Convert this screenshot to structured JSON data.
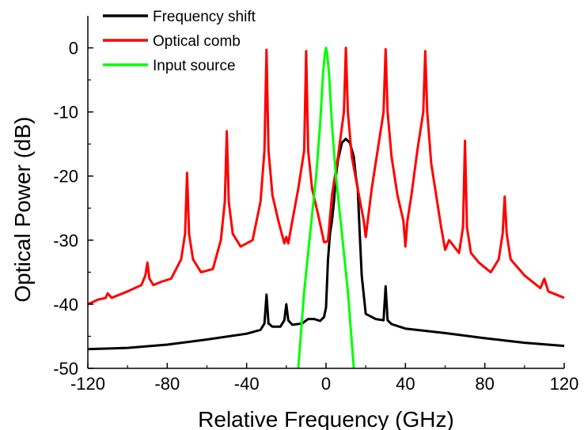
{
  "chart_data": {
    "type": "line",
    "xlabel": "Relative Frequency (GHz)",
    "ylabel": "Optical Power (dB)",
    "xlim": [
      -120,
      120
    ],
    "ylim": [
      -50,
      5
    ],
    "xticks": [
      -120,
      -80,
      -40,
      0,
      40,
      80,
      120
    ],
    "yticks": [
      0,
      -10,
      -20,
      -30,
      -40,
      -50
    ],
    "xtick_labels": [
      "-120",
      "-80",
      "-40",
      "0",
      "40",
      "80",
      "120"
    ],
    "ytick_labels": [
      "0",
      "-10",
      "-20",
      "-30",
      "-40",
      "-50"
    ],
    "grid": false,
    "legend_position": "top-left",
    "series": [
      {
        "name": "Frequency shift",
        "color": "#000000",
        "x": [
          -120,
          -100,
          -80,
          -60,
          -40,
          -33,
          -31,
          -30,
          -29,
          -27,
          -23,
          -21,
          -20,
          -19,
          -17,
          -12,
          -9,
          -6,
          -3,
          -1,
          0,
          1,
          2,
          3,
          4,
          5,
          6,
          8,
          10,
          12,
          14,
          15,
          16,
          17,
          18,
          20,
          25,
          29,
          30,
          31,
          33,
          40,
          60,
          80,
          100,
          120
        ],
        "y": [
          -47,
          -46.8,
          -46.3,
          -45.5,
          -44.6,
          -44,
          -43,
          -38.5,
          -43,
          -43.5,
          -43.5,
          -42.5,
          -40,
          -42.5,
          -43.2,
          -43,
          -42.3,
          -42.3,
          -42.6,
          -42,
          -40.5,
          -33,
          -29,
          -27,
          -24,
          -20,
          -17.5,
          -14.8,
          -14.2,
          -14.8,
          -17,
          -20,
          -22,
          -29,
          -35.5,
          -41.5,
          -42.3,
          -42.5,
          -37.2,
          -42.5,
          -43.1,
          -43.8,
          -44.5,
          -45.3,
          -46,
          -46.5
        ]
      },
      {
        "name": "Optical comb",
        "color": "#ff0000",
        "x": [
          -120,
          -115,
          -111,
          -110,
          -108,
          -100,
          -93,
          -91,
          -90,
          -89,
          -87,
          -83,
          -78,
          -73,
          -71,
          -70,
          -69,
          -67,
          -63,
          -57,
          -53,
          -51,
          -50,
          -49,
          -47,
          -43,
          -37,
          -33,
          -31,
          -30,
          -29,
          -27,
          -24,
          -21,
          -20,
          -19,
          -17,
          -14,
          -11,
          -10,
          -9,
          -7,
          -4,
          -1,
          0,
          1,
          3,
          6,
          9,
          10,
          11,
          13,
          16,
          19,
          20,
          21,
          23,
          26,
          29,
          30,
          31,
          33,
          36,
          39,
          40,
          41,
          43,
          46,
          49,
          50,
          51,
          53,
          58,
          60,
          62,
          67,
          69,
          70,
          71,
          73,
          77,
          83,
          87,
          89,
          90,
          91,
          93,
          100,
          108,
          110,
          112,
          120
        ],
        "y": [
          -40,
          -39.3,
          -39,
          -38.3,
          -39,
          -38,
          -37,
          -35.5,
          -33.5,
          -36,
          -37,
          -36.5,
          -36,
          -33,
          -29,
          -19.5,
          -29,
          -33,
          -35,
          -34.5,
          -30,
          -24,
          -13,
          -24,
          -29,
          -31,
          -30,
          -24,
          -16,
          -0.3,
          -16,
          -23,
          -27,
          -30.5,
          -29.5,
          -30.5,
          -27,
          -22,
          -16,
          -0.5,
          -16,
          -22,
          -26,
          -30.3,
          -30.3,
          -30,
          -23,
          -17,
          -10,
          0,
          -10,
          -17,
          -22,
          -27,
          -29.5,
          -27,
          -22,
          -16,
          -10,
          -0.2,
          -10,
          -17,
          -23,
          -27,
          -31,
          -27,
          -23,
          -16,
          -10,
          -0.5,
          -10,
          -18,
          -28,
          -31.5,
          -30,
          -32,
          -28,
          -14.5,
          -28,
          -32,
          -33.5,
          -35,
          -33,
          -29,
          -23.2,
          -29,
          -33,
          -35.5,
          -37.5,
          -36,
          -38,
          -39
        ]
      },
      {
        "name": "Input source",
        "color": "#00ff00",
        "x": [
          -14,
          -11,
          -8,
          -5,
          -3,
          -1.5,
          -0.5,
          0,
          0.5,
          1.5,
          3,
          5,
          8,
          11,
          14
        ],
        "y": [
          -50,
          -38,
          -29,
          -20,
          -12,
          -4,
          -0.8,
          0,
          -0.8,
          -4,
          -12,
          -20,
          -29,
          -38,
          -50
        ]
      }
    ]
  }
}
